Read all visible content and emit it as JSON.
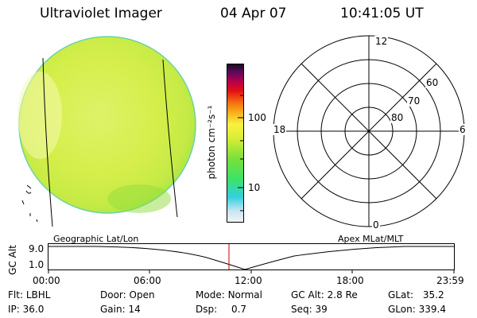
{
  "header": {
    "title": "Ultraviolet Imager",
    "date": "04 Apr 07",
    "time": "10:41:05 UT"
  },
  "colorbar": {
    "label": "photon cm⁻²s⁻¹",
    "ticks": [
      "100",
      "10"
    ]
  },
  "polar_plot": {
    "mlt_labels": {
      "top": "12",
      "bottom": "0",
      "left": "18",
      "right": "6"
    },
    "lat_labels": [
      "60",
      "70",
      "80"
    ]
  },
  "timeline": {
    "y_axis_label": "GC Alt",
    "y_ticks": [
      "9.0",
      "1.0"
    ],
    "left_label": "Geographic Lat/Lon",
    "right_label": "Apex MLat/MLT",
    "x_ticks": [
      "00:00",
      "06:00",
      "12:00",
      "18:00",
      "23:59"
    ],
    "cursor_color": "#cc0000"
  },
  "info": {
    "filter": {
      "label": "Flt:",
      "value": "LBHL"
    },
    "ip": {
      "label": "IP:",
      "value": "36.0"
    },
    "door": {
      "label": "Door:",
      "value": "Open"
    },
    "gain": {
      "label": "Gain:",
      "value": "14"
    },
    "mode": {
      "label": "Mode:",
      "value": "Normal"
    },
    "dsp": {
      "label": "Dsp:",
      "value": "0.7"
    },
    "gc_alt": {
      "label": "GC Alt:",
      "value": "2.8 Re"
    },
    "seq": {
      "label": "Seq:",
      "value": "39"
    },
    "glat": {
      "label": "GLat:",
      "value": "35.2"
    },
    "glon": {
      "label": "GLon:",
      "value": "339.4"
    }
  }
}
